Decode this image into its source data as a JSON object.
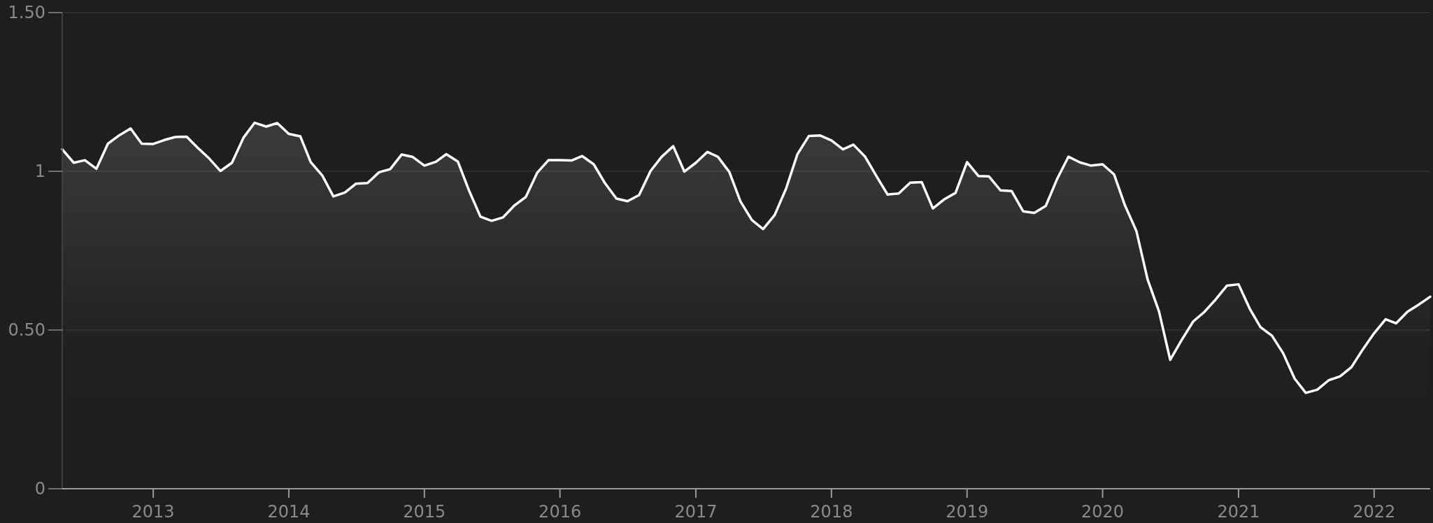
{
  "chart_data": {
    "type": "area",
    "xlim": [
      "2012-05",
      "2022-06"
    ],
    "xticks": [
      "2013",
      "2014",
      "2015",
      "2016",
      "2017",
      "2018",
      "2019",
      "2020",
      "2021",
      "2022"
    ],
    "ylim": [
      0,
      1.5
    ],
    "yticks": [
      0,
      {
        "value": 0.5,
        "label": "0.50"
      },
      1,
      {
        "value": 1.5,
        "label": "1.50"
      }
    ],
    "grid": "y",
    "x": [
      "2012-05",
      "2012-06",
      "2012-07",
      "2012-08",
      "2012-09",
      "2012-10",
      "2012-11",
      "2012-12",
      "2013-01",
      "2013-02",
      "2013-03",
      "2013-04",
      "2013-05",
      "2013-06",
      "2013-07",
      "2013-08",
      "2013-09",
      "2013-10",
      "2013-11",
      "2013-12",
      "2014-01",
      "2014-02",
      "2014-03",
      "2014-04",
      "2014-05",
      "2014-06",
      "2014-07",
      "2014-08",
      "2014-09",
      "2014-10",
      "2014-11",
      "2014-12",
      "2015-01",
      "2015-02",
      "2015-03",
      "2015-04",
      "2015-05",
      "2015-06",
      "2015-07",
      "2015-08",
      "2015-09",
      "2015-10",
      "2015-11",
      "2015-12",
      "2016-01",
      "2016-02",
      "2016-03",
      "2016-04",
      "2016-05",
      "2016-06",
      "2016-07",
      "2016-08",
      "2016-09",
      "2016-10",
      "2016-11",
      "2016-12",
      "2017-01",
      "2017-02",
      "2017-03",
      "2017-04",
      "2017-05",
      "2017-06",
      "2017-07",
      "2017-08",
      "2017-09",
      "2017-10",
      "2017-11",
      "2017-12",
      "2018-01",
      "2018-02",
      "2018-03",
      "2018-04",
      "2018-05",
      "2018-06",
      "2018-07",
      "2018-08",
      "2018-09",
      "2018-10",
      "2018-11",
      "2018-12",
      "2019-01",
      "2019-02",
      "2019-03",
      "2019-04",
      "2019-05",
      "2019-06",
      "2019-07",
      "2019-08",
      "2019-09",
      "2019-10",
      "2019-11",
      "2019-12",
      "2020-01",
      "2020-02",
      "2020-03",
      "2020-04",
      "2020-05",
      "2020-06",
      "2020-07",
      "2020-08",
      "2020-09",
      "2020-10",
      "2020-11",
      "2020-12",
      "2021-01",
      "2021-02",
      "2021-03",
      "2021-04",
      "2021-05",
      "2021-06",
      "2021-07",
      "2021-08",
      "2021-09",
      "2021-10",
      "2021-11",
      "2021-12",
      "2022-01",
      "2022-02",
      "2022-03",
      "2022-04",
      "2022-05",
      "2022-06"
    ],
    "series": [
      {
        "color": "#ffffff",
        "values": [
          1.069,
          1.027,
          1.035,
          1.008,
          1.087,
          1.113,
          1.135,
          1.087,
          1.086,
          1.099,
          1.108,
          1.109,
          1.074,
          1.04,
          1.001,
          1.027,
          1.106,
          1.153,
          1.141,
          1.152,
          1.118,
          1.11,
          1.029,
          0.987,
          0.921,
          0.933,
          0.961,
          0.963,
          0.997,
          1.007,
          1.053,
          1.045,
          1.018,
          1.03,
          1.054,
          1.031,
          0.94,
          0.857,
          0.844,
          0.855,
          0.893,
          0.919,
          0.996,
          1.035,
          1.035,
          1.034,
          1.048,
          1.022,
          0.963,
          0.914,
          0.906,
          0.925,
          1.001,
          1.046,
          1.079,
          0.999,
          1.027,
          1.061,
          1.046,
          0.998,
          0.905,
          0.846,
          0.818,
          0.862,
          0.946,
          1.053,
          1.111,
          1.113,
          1.097,
          1.069,
          1.084,
          1.047,
          0.987,
          0.927,
          0.93,
          0.964,
          0.966,
          0.883,
          0.912,
          0.932,
          1.029,
          0.985,
          0.984,
          0.94,
          0.938,
          0.874,
          0.869,
          0.891,
          0.977,
          1.046,
          1.028,
          1.018,
          1.022,
          0.99,
          0.893,
          0.812,
          0.66,
          0.558,
          0.406,
          0.469,
          0.527,
          0.557,
          0.597,
          0.64,
          0.644,
          0.565,
          0.509,
          0.482,
          0.427,
          0.347,
          0.302,
          0.312,
          0.342,
          0.354,
          0.383,
          0.438,
          0.49,
          0.534,
          0.521,
          0.558,
          0.58,
          0.605
        ]
      }
    ]
  }
}
